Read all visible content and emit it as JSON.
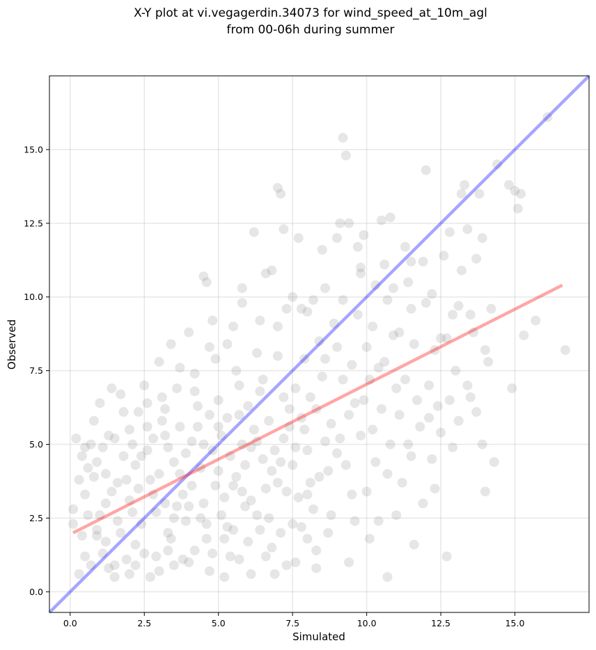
{
  "chart_data": {
    "type": "scatter",
    "title": [
      "X-Y plot at vi.vegagerdin.34073 for wind_speed_at_10m_agl",
      "from 00-06h during summer"
    ],
    "xlabel": "Simulated",
    "ylabel": "Observed",
    "xlim": [
      -0.7,
      17.5
    ],
    "ylim": [
      -0.7,
      17.5
    ],
    "xticks": [
      0.0,
      2.5,
      5.0,
      7.5,
      10.0,
      12.5,
      15.0
    ],
    "yticks": [
      0.0,
      2.5,
      5.0,
      7.5,
      10.0,
      12.5,
      15.0
    ],
    "xtick_labels": [
      "0.0",
      "2.5",
      "5.0",
      "7.5",
      "10.0",
      "12.5",
      "15.0"
    ],
    "ytick_labels": [
      "0.0",
      "2.5",
      "5.0",
      "7.5",
      "10.0",
      "12.5",
      "15.0"
    ],
    "grid": true,
    "point_color": "#808080",
    "point_alpha": 0.2,
    "points": [
      [
        0.1,
        2.8
      ],
      [
        0.1,
        2.3
      ],
      [
        0.2,
        5.2
      ],
      [
        0.3,
        3.8
      ],
      [
        0.4,
        4.6
      ],
      [
        0.5,
        4.9
      ],
      [
        0.5,
        3.3
      ],
      [
        0.6,
        4.2
      ],
      [
        0.7,
        5.0
      ],
      [
        0.8,
        5.8
      ],
      [
        0.9,
        4.4
      ],
      [
        1.0,
        6.4
      ],
      [
        1.1,
        4.9
      ],
      [
        0.8,
        3.9
      ],
      [
        0.6,
        2.6
      ],
      [
        0.5,
        1.2
      ],
      [
        0.3,
        0.6
      ],
      [
        0.9,
        1.9
      ],
      [
        1.1,
        1.3
      ],
      [
        1.3,
        0.8
      ],
      [
        1.5,
        0.5
      ],
      [
        1.4,
        6.9
      ],
      [
        1.7,
        6.7
      ],
      [
        1.5,
        5.2
      ],
      [
        1.8,
        6.1
      ],
      [
        1.2,
        3.0
      ],
      [
        0.9,
        2.1
      ],
      [
        1.6,
        2.4
      ],
      [
        1.9,
        1.1
      ],
      [
        2.0,
        0.6
      ],
      [
        2.2,
        1.6
      ],
      [
        2.3,
        3.5
      ],
      [
        2.5,
        7.0
      ],
      [
        2.6,
        5.6
      ],
      [
        2.2,
        4.3
      ],
      [
        2.4,
        2.3
      ],
      [
        2.7,
        0.5
      ],
      [
        2.9,
        1.2
      ],
      [
        3.0,
        7.8
      ],
      [
        3.1,
        6.6
      ],
      [
        2.8,
        5.2
      ],
      [
        3.0,
        4.0
      ],
      [
        3.2,
        3.0
      ],
      [
        3.3,
        2.0
      ],
      [
        3.5,
        0.9
      ],
      [
        3.4,
        8.4
      ],
      [
        3.6,
        6.9
      ],
      [
        3.7,
        5.6
      ],
      [
        3.5,
        4.4
      ],
      [
        3.8,
        3.3
      ],
      [
        3.9,
        2.4
      ],
      [
        4.0,
        1.0
      ],
      [
        4.0,
        8.8
      ],
      [
        4.2,
        7.4
      ],
      [
        4.3,
        6.3
      ],
      [
        4.1,
        5.1
      ],
      [
        4.4,
        4.2
      ],
      [
        4.5,
        3.0
      ],
      [
        4.6,
        1.8
      ],
      [
        4.7,
        0.7
      ],
      [
        4.5,
        10.7
      ],
      [
        4.6,
        10.5
      ],
      [
        4.8,
        9.2
      ],
      [
        4.9,
        7.9
      ],
      [
        5.0,
        6.5
      ],
      [
        5.1,
        5.3
      ],
      [
        5.0,
        4.1
      ],
      [
        5.2,
        3.2
      ],
      [
        5.3,
        2.2
      ],
      [
        5.4,
        1.2
      ],
      [
        5.2,
        0.5
      ],
      [
        5.5,
        9.0
      ],
      [
        5.6,
        7.5
      ],
      [
        5.7,
        6.0
      ],
      [
        5.8,
        5.0
      ],
      [
        5.6,
        3.9
      ],
      [
        5.9,
        2.9
      ],
      [
        6.0,
        1.7
      ],
      [
        6.1,
        0.6
      ],
      [
        5.8,
        10.3
      ],
      [
        6.2,
        12.2
      ],
      [
        6.3,
        8.1
      ],
      [
        6.4,
        6.8
      ],
      [
        6.2,
        5.5
      ],
      [
        6.5,
        4.5
      ],
      [
        6.6,
        3.5
      ],
      [
        6.7,
        2.5
      ],
      [
        6.8,
        1.5
      ],
      [
        6.9,
        0.6
      ],
      [
        6.6,
        10.8
      ],
      [
        6.8,
        10.9
      ],
      [
        7.0,
        13.7
      ],
      [
        7.1,
        13.5
      ],
      [
        7.2,
        12.3
      ],
      [
        7.3,
        9.6
      ],
      [
        7.0,
        8.0
      ],
      [
        7.2,
        6.6
      ],
      [
        7.4,
        5.6
      ],
      [
        7.1,
        4.4
      ],
      [
        7.3,
        3.4
      ],
      [
        7.5,
        2.3
      ],
      [
        7.6,
        1.0
      ],
      [
        7.7,
        12.0
      ],
      [
        7.8,
        9.6
      ],
      [
        7.9,
        7.9
      ],
      [
        7.6,
        6.9
      ],
      [
        7.8,
        5.9
      ],
      [
        8.0,
        4.8
      ],
      [
        8.1,
        3.7
      ],
      [
        8.2,
        2.8
      ],
      [
        8.0,
        1.8
      ],
      [
        8.3,
        0.8
      ],
      [
        8.2,
        9.9
      ],
      [
        8.4,
        8.5
      ],
      [
        8.5,
        7.3
      ],
      [
        8.3,
        6.2
      ],
      [
        8.6,
        5.1
      ],
      [
        8.7,
        4.1
      ],
      [
        8.8,
        2.6
      ],
      [
        8.5,
        11.6
      ],
      [
        8.9,
        9.1
      ],
      [
        9.0,
        12.0
      ],
      [
        9.1,
        12.5
      ],
      [
        9.2,
        15.4
      ],
      [
        9.3,
        14.8
      ],
      [
        9.4,
        12.5
      ],
      [
        9.0,
        8.3
      ],
      [
        9.2,
        7.2
      ],
      [
        9.4,
        6.0
      ],
      [
        9.1,
        5.2
      ],
      [
        9.3,
        4.3
      ],
      [
        9.5,
        3.3
      ],
      [
        9.6,
        2.4
      ],
      [
        9.4,
        1.0
      ],
      [
        9.7,
        11.7
      ],
      [
        9.8,
        10.8
      ],
      [
        9.9,
        12.1
      ],
      [
        9.7,
        9.4
      ],
      [
        10.0,
        8.3
      ],
      [
        10.1,
        7.2
      ],
      [
        9.9,
        6.5
      ],
      [
        10.2,
        5.5
      ],
      [
        10.3,
        4.4
      ],
      [
        10.0,
        3.4
      ],
      [
        10.4,
        2.4
      ],
      [
        10.1,
        1.8
      ],
      [
        10.5,
        12.6
      ],
      [
        10.6,
        11.1
      ],
      [
        10.8,
        12.7
      ],
      [
        10.7,
        9.9
      ],
      [
        10.9,
        8.7
      ],
      [
        10.6,
        7.8
      ],
      [
        11.0,
        6.9
      ],
      [
        11.1,
        6.0
      ],
      [
        10.8,
        5.0
      ],
      [
        11.2,
        3.7
      ],
      [
        11.0,
        2.6
      ],
      [
        10.7,
        0.5
      ],
      [
        11.3,
        11.7
      ],
      [
        11.4,
        10.5
      ],
      [
        11.5,
        9.6
      ],
      [
        11.6,
        8.4
      ],
      [
        11.3,
        7.2
      ],
      [
        11.7,
        6.5
      ],
      [
        11.8,
        5.6
      ],
      [
        11.5,
        4.6
      ],
      [
        11.9,
        3.0
      ],
      [
        11.6,
        1.6
      ],
      [
        11.9,
        11.2
      ],
      [
        12.0,
        14.3
      ],
      [
        12.2,
        10.1
      ],
      [
        12.3,
        8.2
      ],
      [
        12.1,
        7.0
      ],
      [
        12.4,
        6.3
      ],
      [
        12.5,
        5.4
      ],
      [
        12.2,
        4.5
      ],
      [
        12.6,
        11.4
      ],
      [
        12.8,
        12.2
      ],
      [
        12.9,
        9.4
      ],
      [
        12.7,
        8.6
      ],
      [
        13.0,
        7.5
      ],
      [
        12.8,
        6.5
      ],
      [
        13.1,
        5.8
      ],
      [
        12.9,
        4.9
      ],
      [
        12.7,
        1.2
      ],
      [
        13.2,
        13.5
      ],
      [
        13.3,
        13.8
      ],
      [
        13.4,
        12.3
      ],
      [
        13.2,
        10.9
      ],
      [
        13.5,
        9.4
      ],
      [
        13.6,
        8.8
      ],
      [
        13.4,
        7.0
      ],
      [
        13.7,
        6.1
      ],
      [
        13.8,
        13.5
      ],
      [
        13.9,
        12.0
      ],
      [
        13.7,
        11.3
      ],
      [
        14.0,
        8.2
      ],
      [
        14.1,
        7.8
      ],
      [
        13.9,
        5.0
      ],
      [
        14.0,
        3.4
      ],
      [
        14.2,
        9.6
      ],
      [
        14.4,
        14.5
      ],
      [
        14.8,
        13.8
      ],
      [
        15.0,
        13.6
      ],
      [
        15.2,
        13.5
      ],
      [
        15.1,
        13.0
      ],
      [
        15.3,
        8.7
      ],
      [
        14.9,
        6.9
      ],
      [
        15.7,
        9.2
      ],
      [
        16.1,
        16.1
      ],
      [
        16.7,
        8.2
      ],
      [
        1.2,
        4.0
      ],
      [
        1.3,
        5.3
      ],
      [
        1.6,
        3.7
      ],
      [
        1.8,
        4.6
      ],
      [
        2.0,
        3.1
      ],
      [
        2.1,
        5.0
      ],
      [
        2.3,
        6.1
      ],
      [
        2.6,
        4.8
      ],
      [
        2.7,
        3.8
      ],
      [
        2.9,
        2.7
      ],
      [
        3.1,
        5.8
      ],
      [
        3.3,
        4.9
      ],
      [
        3.4,
        1.8
      ],
      [
        3.6,
        2.9
      ],
      [
        3.9,
        4.7
      ],
      [
        4.1,
        3.6
      ],
      [
        4.3,
        5.6
      ],
      [
        4.4,
        2.5
      ],
      [
        4.7,
        6.0
      ],
      [
        4.8,
        4.8
      ],
      [
        4.9,
        3.6
      ],
      [
        5.1,
        2.6
      ],
      [
        5.3,
        5.9
      ],
      [
        5.4,
        4.6
      ],
      [
        5.5,
        3.6
      ],
      [
        5.7,
        7.0
      ],
      [
        5.9,
        4.3
      ],
      [
        6.0,
        6.3
      ],
      [
        6.1,
        3.1
      ],
      [
        6.3,
        5.1
      ],
      [
        6.4,
        2.1
      ],
      [
        6.5,
        7.2
      ],
      [
        6.7,
        5.8
      ],
      [
        6.9,
        4.8
      ],
      [
        7.0,
        3.7
      ],
      [
        7.2,
        5.2
      ],
      [
        7.4,
        6.2
      ],
      [
        7.5,
        4.3
      ],
      [
        7.7,
        3.2
      ],
      [
        7.9,
        5.5
      ],
      [
        8.1,
        6.6
      ],
      [
        8.4,
        3.9
      ],
      [
        8.6,
        7.9
      ],
      [
        8.8,
        5.7
      ],
      [
        9.0,
        4.7
      ],
      [
        9.5,
        7.7
      ],
      [
        9.6,
        6.4
      ],
      [
        9.8,
        5.3
      ],
      [
        10.2,
        9.0
      ],
      [
        10.4,
        7.6
      ],
      [
        10.5,
        6.2
      ],
      [
        10.7,
        4.0
      ],
      [
        11.1,
        8.8
      ],
      [
        11.4,
        5.0
      ],
      [
        12.1,
        5.9
      ],
      [
        12.3,
        3.5
      ],
      [
        13.1,
        9.7
      ],
      [
        13.5,
        6.6
      ],
      [
        14.3,
        4.4
      ],
      [
        0.4,
        1.9
      ],
      [
        0.7,
        0.9
      ],
      [
        1.0,
        2.6
      ],
      [
        1.2,
        1.7
      ],
      [
        1.4,
        3.4
      ],
      [
        1.5,
        0.9
      ],
      [
        1.7,
        2.0
      ],
      [
        1.9,
        3.8
      ],
      [
        2.1,
        2.7
      ],
      [
        2.2,
        0.9
      ],
      [
        2.4,
        4.6
      ],
      [
        2.5,
        1.3
      ],
      [
        2.8,
        3.3
      ],
      [
        3.0,
        0.7
      ],
      [
        3.2,
        5.3
      ],
      [
        3.3,
        1.4
      ],
      [
        3.5,
        2.5
      ],
      [
        3.7,
        4.0
      ],
      [
        3.8,
        1.1
      ],
      [
        4.0,
        2.9
      ],
      [
        4.2,
        1.4
      ],
      [
        4.5,
        5.0
      ],
      [
        4.6,
        2.3
      ],
      [
        4.8,
        1.3
      ],
      [
        5.0,
        5.6
      ],
      [
        5.2,
        1.8
      ],
      [
        5.5,
        2.1
      ],
      [
        5.7,
        1.1
      ],
      [
        5.8,
        3.4
      ],
      [
        6.1,
        4.9
      ],
      [
        6.3,
        2.6
      ],
      [
        6.6,
        1.2
      ],
      [
        6.8,
        4.1
      ],
      [
        7.1,
        2.0
      ],
      [
        7.3,
        0.9
      ],
      [
        7.6,
        4.9
      ],
      [
        7.8,
        2.2
      ],
      [
        8.0,
        3.3
      ],
      [
        8.3,
        1.4
      ],
      [
        8.7,
        2.0
      ],
      [
        2.0,
        5.5
      ],
      [
        2.6,
        6.4
      ],
      [
        3.2,
        6.2
      ],
      [
        3.7,
        7.6
      ],
      [
        4.2,
        6.8
      ],
      [
        4.7,
        8.3
      ],
      [
        5.3,
        8.4
      ],
      [
        5.8,
        9.8
      ],
      [
        6.4,
        9.2
      ],
      [
        7.0,
        9.0
      ],
      [
        7.5,
        10.0
      ],
      [
        8.0,
        9.5
      ],
      [
        8.6,
        10.3
      ],
      [
        9.2,
        9.9
      ],
      [
        9.8,
        11.0
      ],
      [
        10.3,
        10.4
      ],
      [
        10.9,
        10.3
      ],
      [
        11.5,
        11.2
      ],
      [
        12.0,
        9.8
      ],
      [
        12.5,
        8.6
      ]
    ],
    "lines": [
      {
        "color": "#0000ff",
        "alpha": 0.35,
        "x": [
          -0.7,
          17.5
        ],
        "y": [
          -0.7,
          17.5
        ]
      },
      {
        "color": "#ff0000",
        "alpha": 0.35,
        "x": [
          0.1,
          16.6
        ],
        "y": [
          2.0,
          10.4
        ]
      }
    ]
  }
}
